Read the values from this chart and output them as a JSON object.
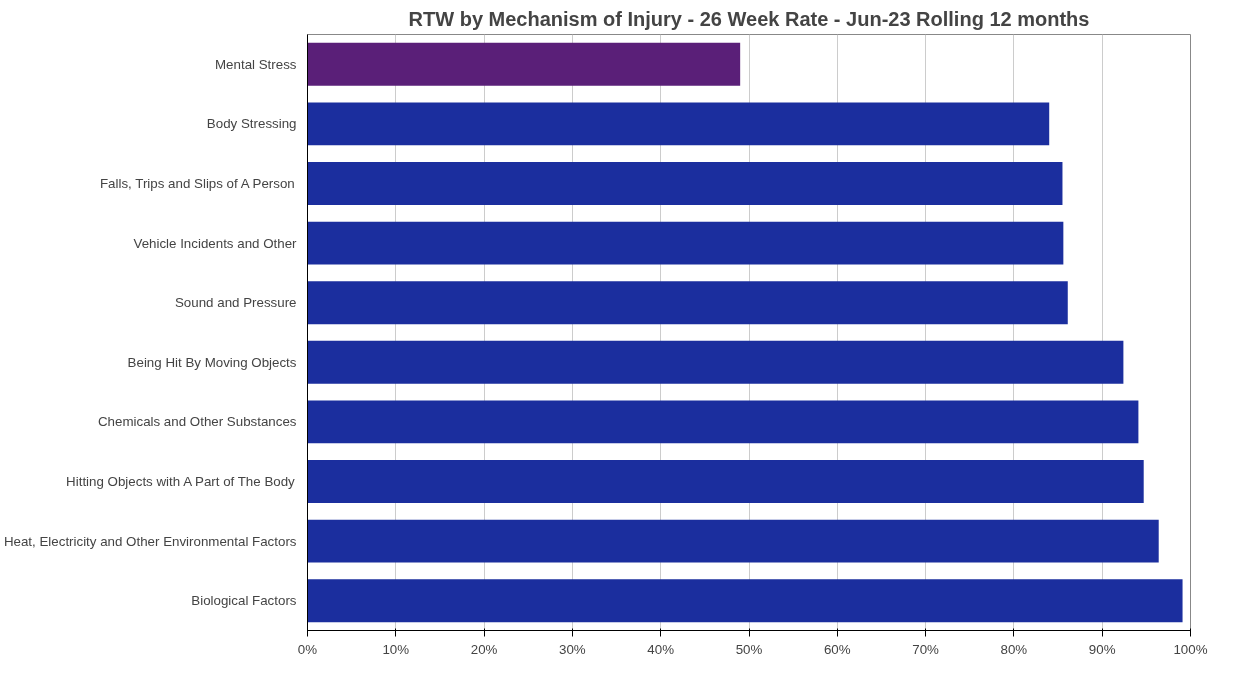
{
  "chart_data": {
    "type": "bar",
    "orientation": "horizontal",
    "title": "RTW by Mechanism of Injury - 26 Week Rate - Jun-23 Rolling 12 months",
    "categories": [
      "Mental Stress",
      "Body Stressing",
      "Falls, Trips and Slips of A Person",
      "Vehicle Incidents and Other",
      "Sound and Pressure",
      "Being Hit By Moving Objects",
      "Chemicals and Other Substances",
      "Hitting Objects with A Part of The Body",
      "Heat, Electricity and Other Environmental Factors",
      "Biological Factors"
    ],
    "values": [
      0.49,
      0.84,
      0.855,
      0.856,
      0.861,
      0.924,
      0.941,
      0.947,
      0.964,
      0.991
    ],
    "colors": [
      "#5a1f78",
      "#1b2e9e",
      "#1b2e9e",
      "#1b2e9e",
      "#1b2e9e",
      "#1b2e9e",
      "#1b2e9e",
      "#1b2e9e",
      "#1b2e9e",
      "#1b2e9e"
    ],
    "xlim": [
      0,
      1
    ],
    "xticks": [
      {
        "value": 0,
        "label": "0%"
      },
      {
        "value": 0.1,
        "label": "10%"
      },
      {
        "value": 0.2,
        "label": "20%"
      },
      {
        "value": 0.3,
        "label": "30%"
      },
      {
        "value": 0.4,
        "label": "40%"
      },
      {
        "value": 0.5,
        "label": "50%"
      },
      {
        "value": 0.6,
        "label": "60%"
      },
      {
        "value": 0.7,
        "label": "70%"
      },
      {
        "value": 0.8,
        "label": "80%"
      },
      {
        "value": 0.9,
        "label": "90%"
      },
      {
        "value": 1,
        "label": "100%"
      }
    ],
    "grid": "x"
  }
}
